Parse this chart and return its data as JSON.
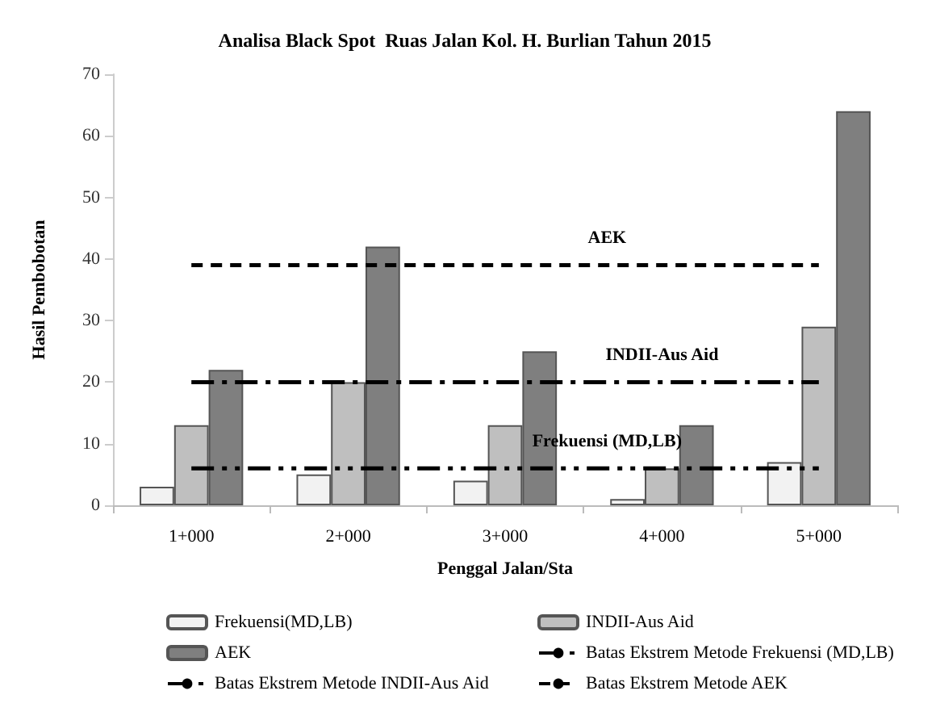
{
  "chart_data": {
    "type": "bar",
    "title": "Analisa Black Spot  Ruas Jalan Kol. H. Burlian Tahun 2015",
    "xlabel": "Penggal Jalan/Sta",
    "ylabel": "Hasil Pembobotan",
    "categories": [
      "1+000",
      "2+000",
      "3+000",
      "4+000",
      "5+000"
    ],
    "series": [
      {
        "name": "Frekuensi(MD,LB)",
        "color": "#f2f2f2",
        "values": [
          3,
          5,
          4,
          1,
          7
        ]
      },
      {
        "name": "INDII-Aus Aid",
        "color": "#bfbfbf",
        "values": [
          13,
          20,
          13,
          6,
          29
        ]
      },
      {
        "name": "AEK",
        "color": "#7f7f7f",
        "values": [
          22,
          42,
          25,
          13,
          64
        ]
      },
      {
        "name": "Batas Ekstrem Metode Frekuensi (MD,LB)",
        "type": "line",
        "color": "#000000",
        "line_style": "dashdotdot",
        "values": [
          6,
          6,
          6,
          6,
          6
        ]
      },
      {
        "name": "Batas Ekstrem Metode INDII-Aus Aid",
        "type": "line",
        "color": "#000000",
        "line_style": "dashdot",
        "values": [
          20,
          20,
          20,
          20,
          20
        ]
      },
      {
        "name": "Batas Ekstrem Metode AEK",
        "type": "line",
        "color": "#000000",
        "line_style": "dashed",
        "values": [
          39,
          39,
          39,
          39,
          39
        ]
      }
    ],
    "annotations": [
      {
        "text": "AEK",
        "y": 39
      },
      {
        "text": "INDII-Aus Aid",
        "x": "4+000",
        "y": 20
      },
      {
        "text": "Frekuensi (MD,LB)",
        "y": 6
      }
    ],
    "ylim": [
      0,
      70
    ],
    "yticks": [
      0,
      10,
      20,
      30,
      40,
      50,
      60,
      70
    ],
    "grid": false,
    "legend": "bottom",
    "marker": "none"
  }
}
